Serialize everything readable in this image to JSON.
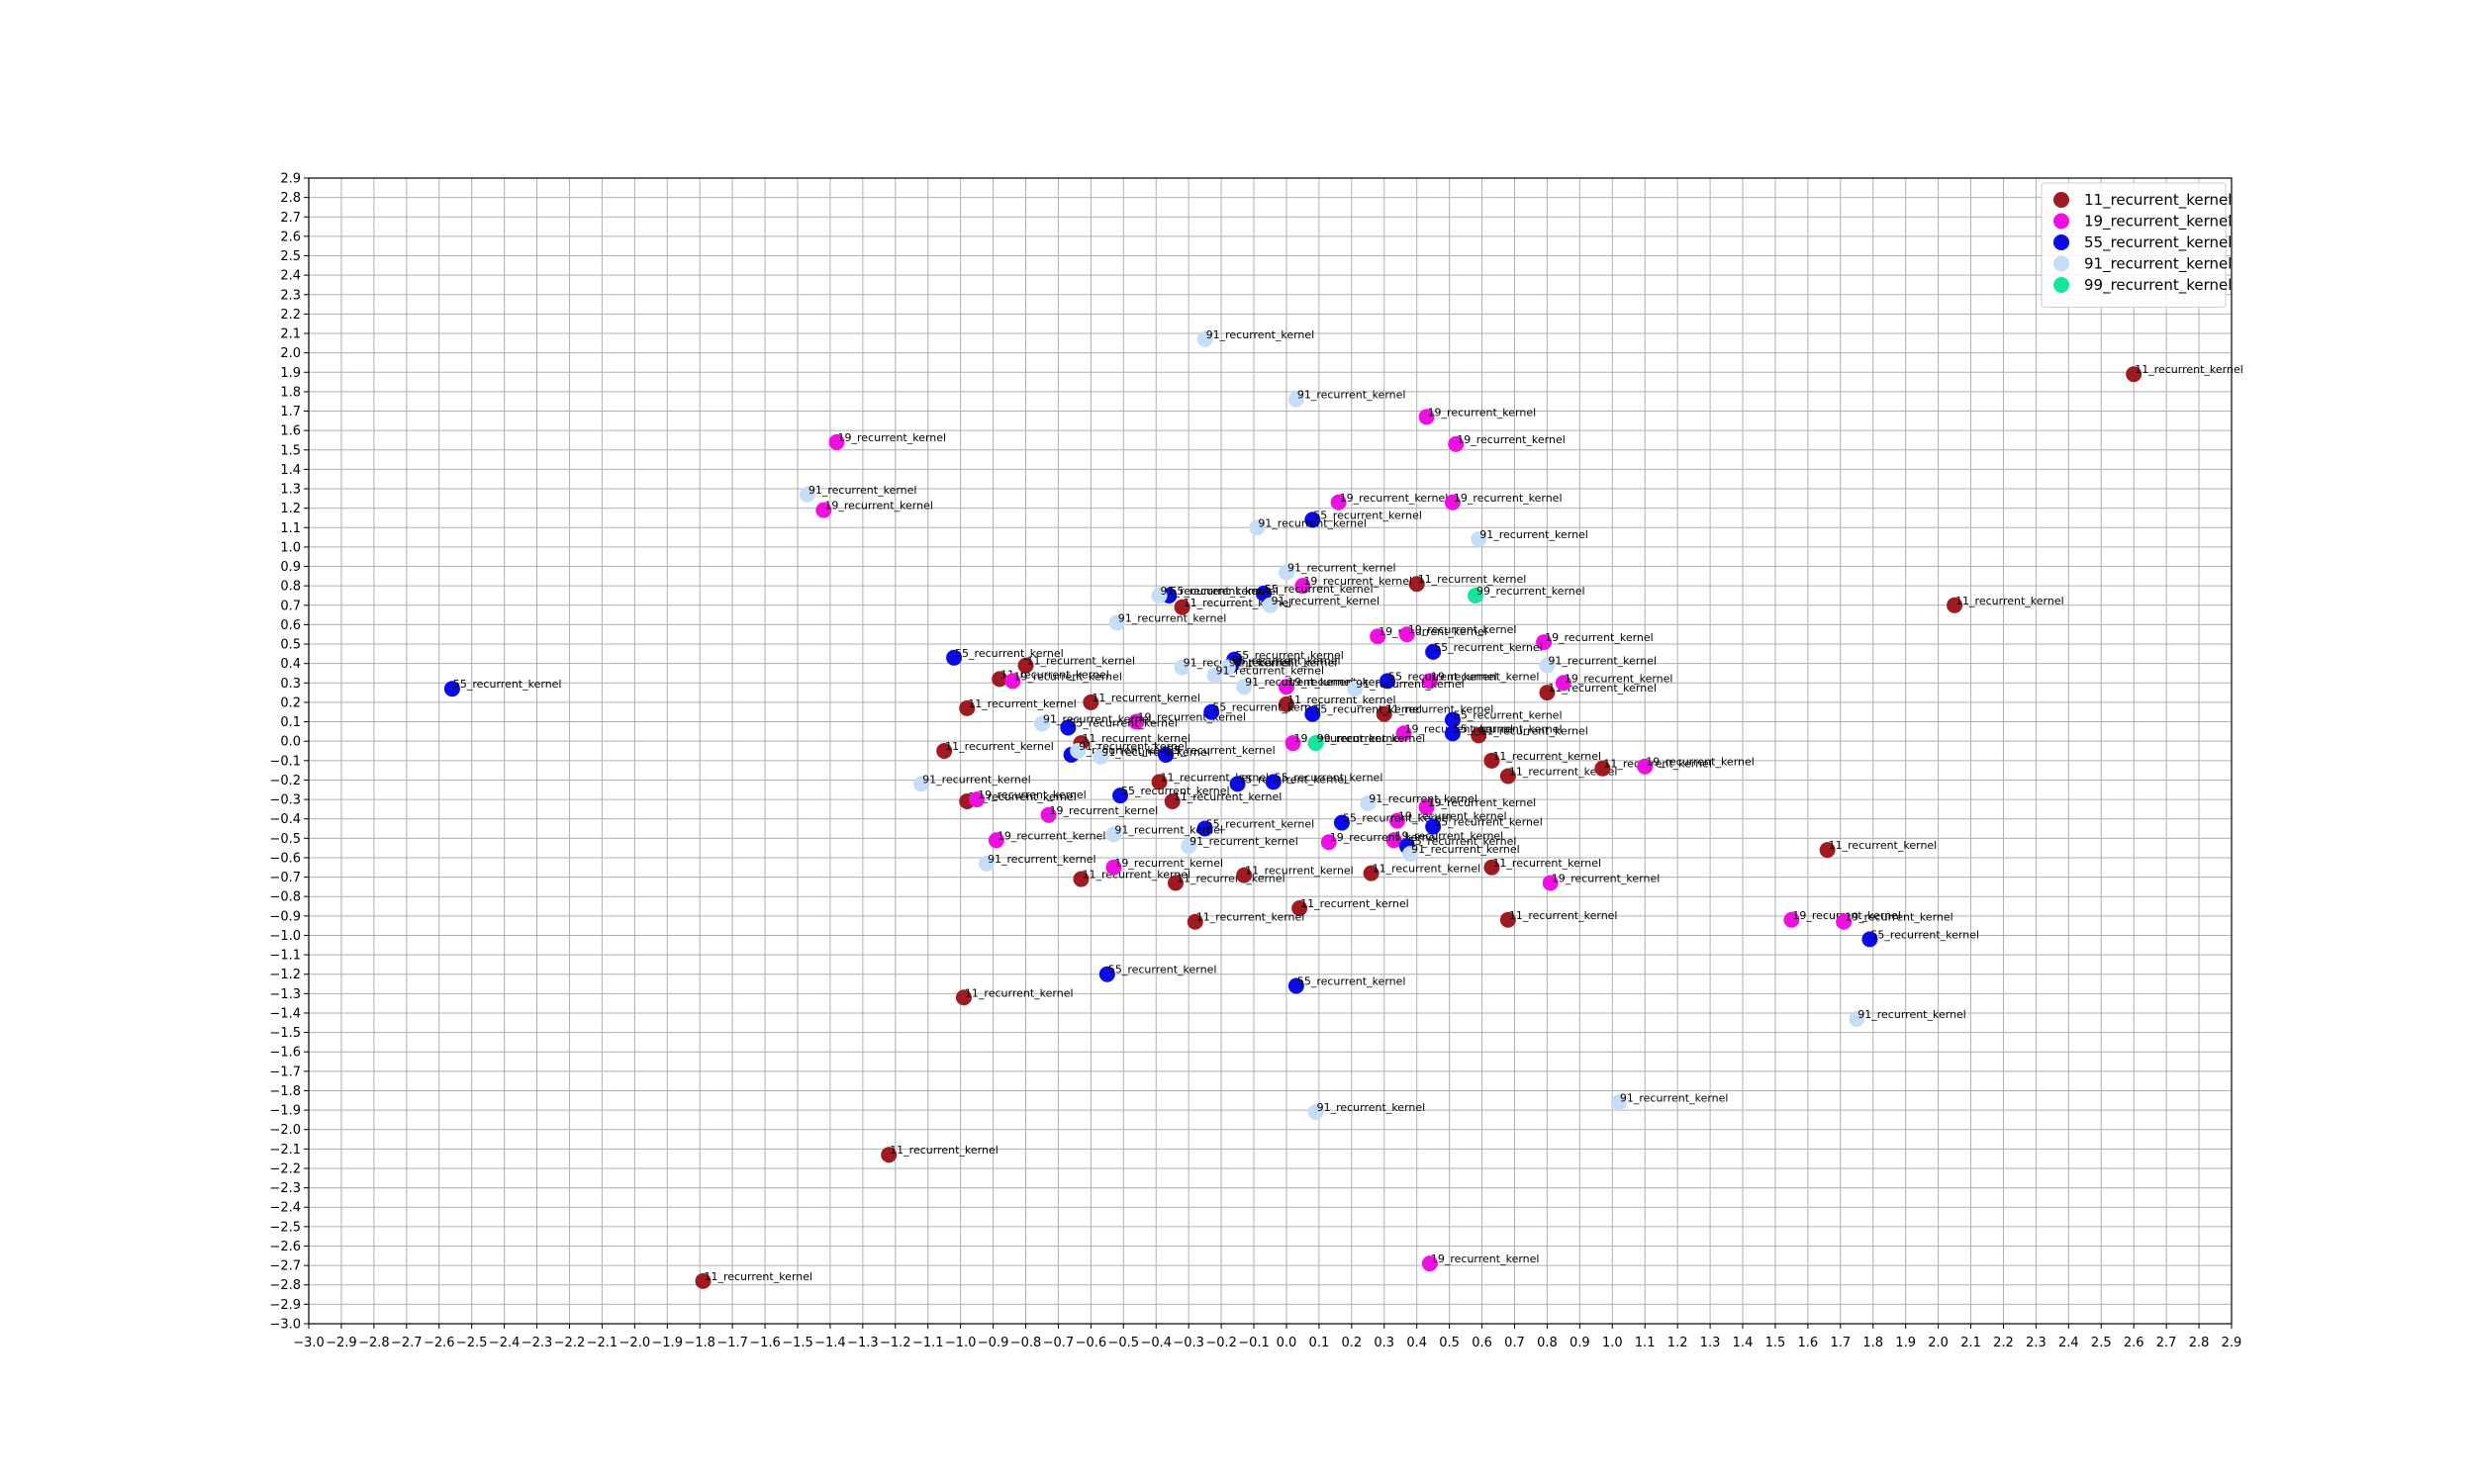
{
  "chart_data": {
    "type": "scatter",
    "title": "",
    "xlabel": "",
    "ylabel": "",
    "xlim": [
      -3.0,
      2.9
    ],
    "ylim": [
      -3.0,
      2.9
    ],
    "tick_step": 0.1,
    "grid": true,
    "legend_position": "top-right",
    "point_label_mode": "series-name",
    "series": [
      {
        "name": "11_recurrent_kernel",
        "color": "#a01a22",
        "points": [
          [
            2.6,
            1.89
          ],
          [
            2.05,
            0.7
          ],
          [
            0.4,
            0.81
          ],
          [
            -0.32,
            0.69
          ],
          [
            -0.8,
            0.39
          ],
          [
            -0.88,
            0.32
          ],
          [
            -0.98,
            0.17
          ],
          [
            -0.6,
            0.2
          ],
          [
            -1.05,
            -0.05
          ],
          [
            -0.63,
            -0.01
          ],
          [
            -0.39,
            -0.21
          ],
          [
            -0.35,
            -0.31
          ],
          [
            -0.98,
            -0.31
          ],
          [
            -0.63,
            -0.71
          ],
          [
            -0.34,
            -0.73
          ],
          [
            -0.13,
            -0.69
          ],
          [
            0.26,
            -0.68
          ],
          [
            0.63,
            -0.65
          ],
          [
            0.04,
            -0.86
          ],
          [
            -0.28,
            -0.93
          ],
          [
            0.68,
            -0.92
          ],
          [
            0.68,
            -0.18
          ],
          [
            0.63,
            -0.1
          ],
          [
            0.59,
            0.03
          ],
          [
            0.8,
            0.25
          ],
          [
            0.97,
            -0.14
          ],
          [
            1.66,
            -0.56
          ],
          [
            -0.99,
            -1.32
          ],
          [
            -1.22,
            -2.13
          ],
          [
            -1.79,
            -2.78
          ],
          [
            0.0,
            0.19
          ],
          [
            0.3,
            0.14
          ]
        ]
      },
      {
        "name": "19_recurrent_kernel",
        "color": "#ee10e0",
        "points": [
          [
            -1.38,
            1.54
          ],
          [
            -1.42,
            1.19
          ],
          [
            0.43,
            1.67
          ],
          [
            0.52,
            1.53
          ],
          [
            0.16,
            1.23
          ],
          [
            0.51,
            1.23
          ],
          [
            0.05,
            0.8
          ],
          [
            0.28,
            0.54
          ],
          [
            0.37,
            0.55
          ],
          [
            0.79,
            0.51
          ],
          [
            0.85,
            0.3
          ],
          [
            0.44,
            0.31
          ],
          [
            -0.84,
            0.31
          ],
          [
            -0.46,
            0.1
          ],
          [
            0.0,
            0.28
          ],
          [
            0.02,
            -0.01
          ],
          [
            0.36,
            0.04
          ],
          [
            0.43,
            -0.34
          ],
          [
            0.34,
            -0.41
          ],
          [
            0.33,
            -0.51
          ],
          [
            0.13,
            -0.52
          ],
          [
            -0.73,
            -0.38
          ],
          [
            -0.95,
            -0.3
          ],
          [
            -0.89,
            -0.51
          ],
          [
            -0.53,
            -0.65
          ],
          [
            0.81,
            -0.73
          ],
          [
            1.1,
            -0.13
          ],
          [
            1.55,
            -0.92
          ],
          [
            1.71,
            -0.93
          ],
          [
            0.44,
            -2.69
          ]
        ]
      },
      {
        "name": "55_recurrent_kernel",
        "color": "#0b0be6",
        "points": [
          [
            -2.56,
            0.27
          ],
          [
            0.08,
            1.14
          ],
          [
            -0.07,
            0.76
          ],
          [
            -0.36,
            0.75
          ],
          [
            -1.02,
            0.43
          ],
          [
            -0.16,
            0.42
          ],
          [
            -0.17,
            0.39
          ],
          [
            0.45,
            0.46
          ],
          [
            0.31,
            0.31
          ],
          [
            -0.23,
            0.15
          ],
          [
            0.08,
            0.14
          ],
          [
            0.51,
            0.11
          ],
          [
            0.51,
            0.04
          ],
          [
            -0.67,
            0.07
          ],
          [
            -0.66,
            -0.07
          ],
          [
            -0.37,
            -0.07
          ],
          [
            -0.15,
            -0.22
          ],
          [
            -0.04,
            -0.21
          ],
          [
            -0.51,
            -0.28
          ],
          [
            -0.25,
            -0.45
          ],
          [
            0.17,
            -0.42
          ],
          [
            0.45,
            -0.44
          ],
          [
            0.37,
            -0.54
          ],
          [
            -0.55,
            -1.2
          ],
          [
            0.03,
            -1.26
          ],
          [
            1.79,
            -1.02
          ]
        ]
      },
      {
        "name": "91_recurrent_kernel",
        "color": "#c6ddf8",
        "points": [
          [
            -0.25,
            2.07
          ],
          [
            0.03,
            1.76
          ],
          [
            -0.09,
            1.1
          ],
          [
            0.59,
            1.04
          ],
          [
            -1.47,
            1.27
          ],
          [
            0.0,
            0.87
          ],
          [
            -0.39,
            0.75
          ],
          [
            -0.05,
            0.7
          ],
          [
            -0.52,
            0.61
          ],
          [
            -0.32,
            0.38
          ],
          [
            -0.18,
            0.38
          ],
          [
            -0.22,
            0.34
          ],
          [
            0.8,
            0.39
          ],
          [
            -0.13,
            0.28
          ],
          [
            0.21,
            0.27
          ],
          [
            -0.75,
            0.09
          ],
          [
            -0.64,
            -0.05
          ],
          [
            -0.57,
            -0.08
          ],
          [
            -1.12,
            -0.22
          ],
          [
            0.25,
            -0.32
          ],
          [
            -0.53,
            -0.48
          ],
          [
            -0.3,
            -0.54
          ],
          [
            0.38,
            -0.58
          ],
          [
            -0.92,
            -0.63
          ],
          [
            1.75,
            -1.43
          ],
          [
            1.02,
            -1.86
          ],
          [
            0.09,
            -1.91
          ]
        ]
      },
      {
        "name": "99_recurrent_kernel",
        "color": "#14e59c",
        "points": [
          [
            0.58,
            0.75
          ],
          [
            0.09,
            -0.01
          ]
        ]
      }
    ]
  }
}
